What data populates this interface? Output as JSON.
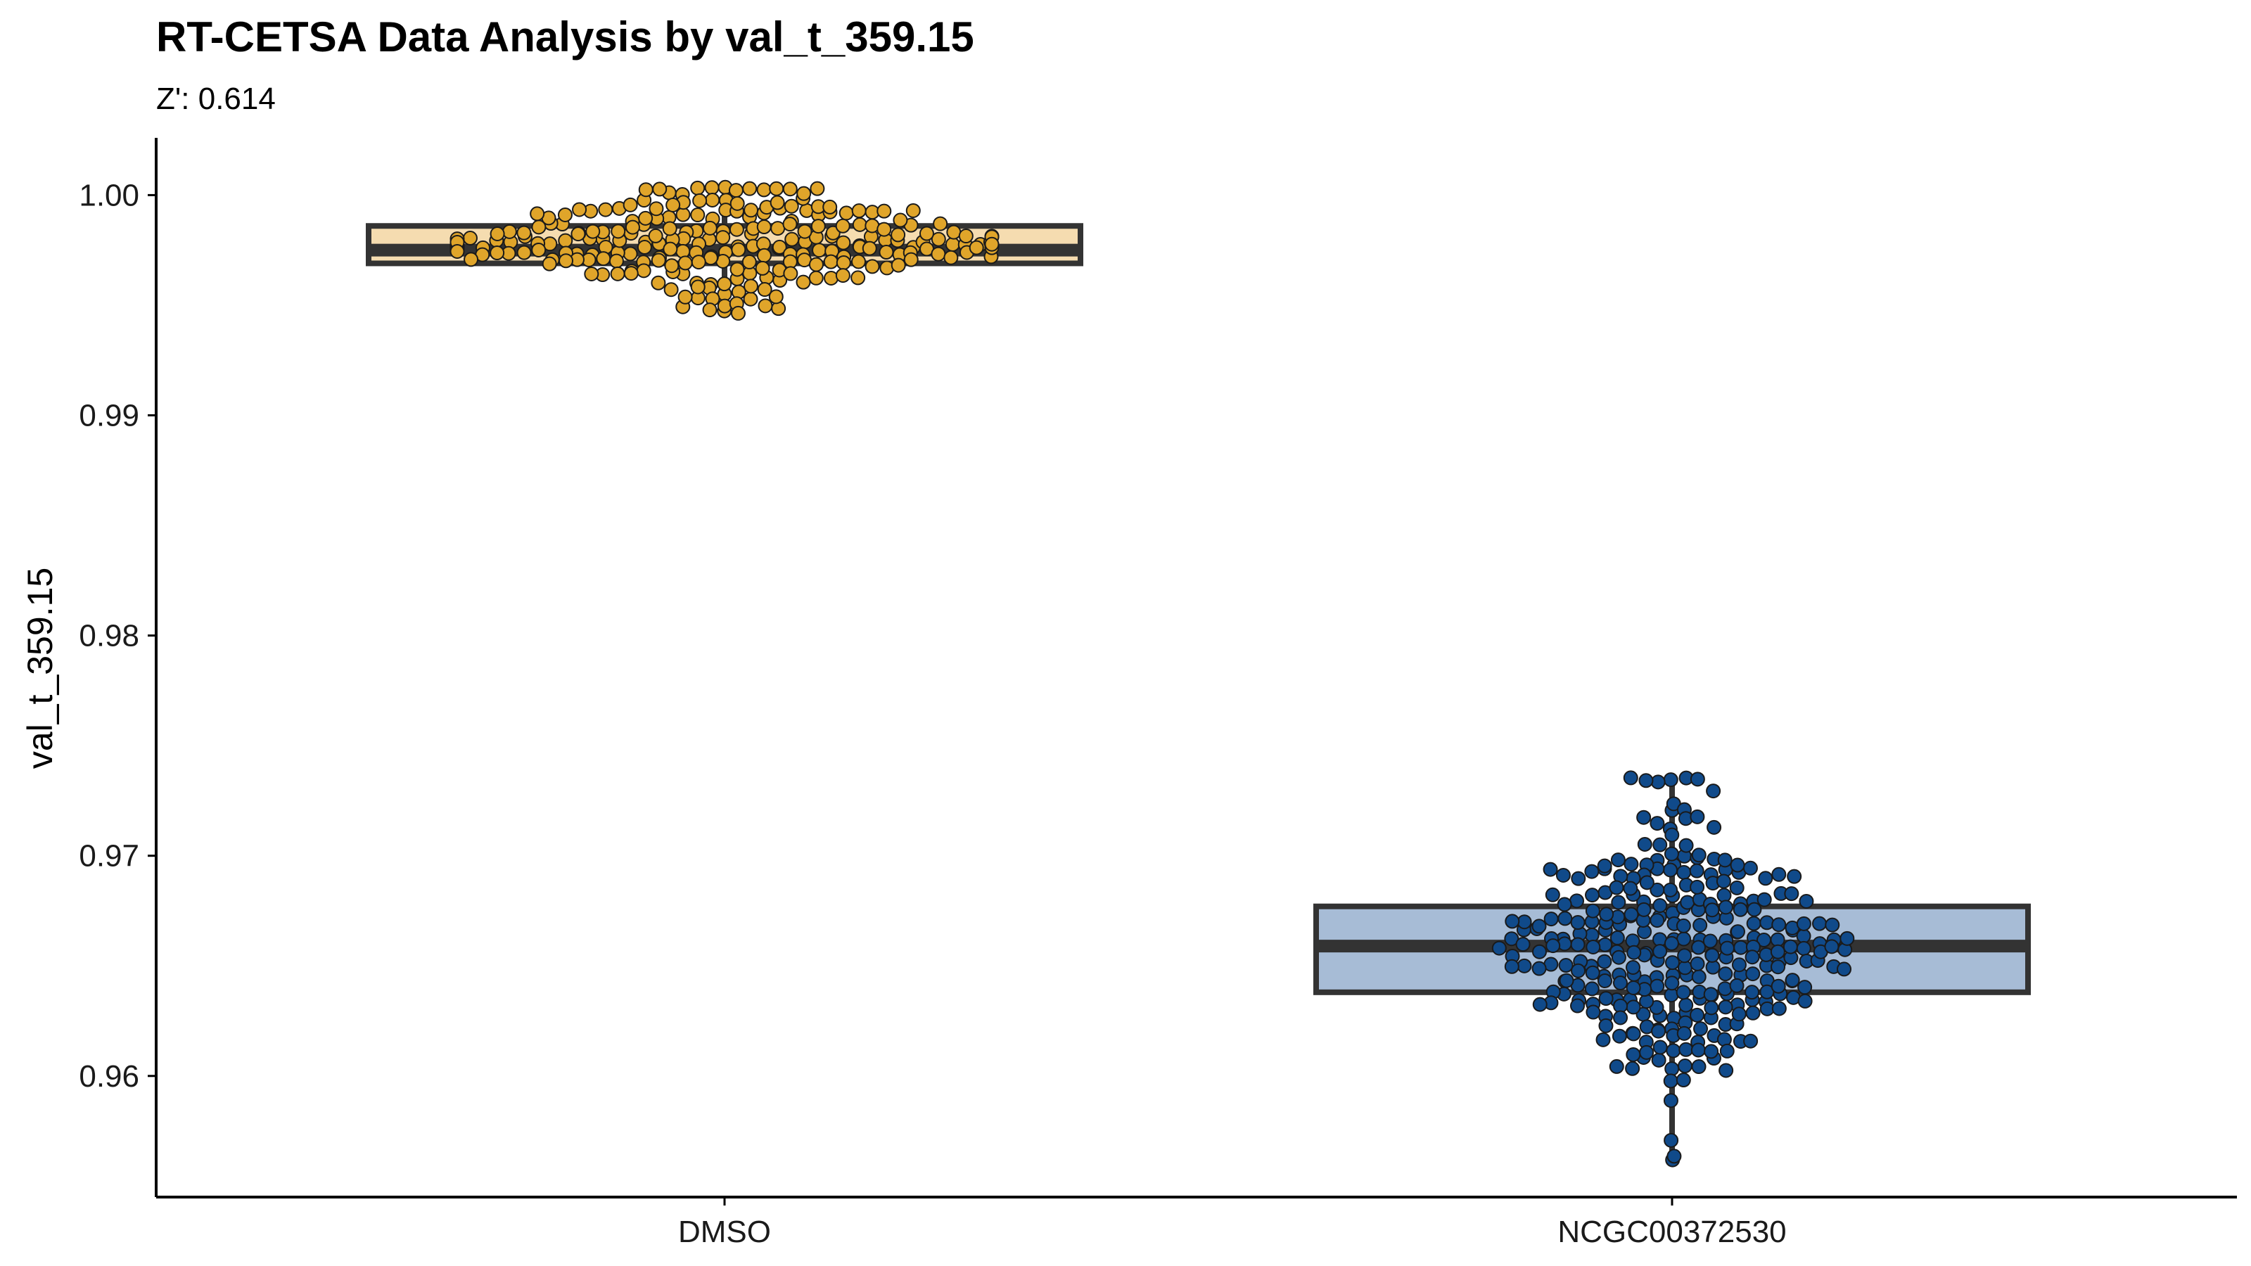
{
  "chart_data": {
    "type": "box",
    "title": "RT-CETSA Data Analysis by val_t_359.15",
    "subtitle": "Z': 0.614",
    "xlabel": "",
    "ylabel": "val_t_359.15",
    "ylim": [
      0.9545,
      1.0026
    ],
    "yticks": [
      0.96,
      0.97,
      0.98,
      0.99,
      1.0
    ],
    "ytick_labels": [
      "0.96",
      "0.97",
      "0.98",
      "0.99",
      "1.00"
    ],
    "categories": [
      "DMSO",
      "NCGC00372530"
    ],
    "grid": false,
    "legend": "none",
    "series": [
      {
        "category": "DMSO",
        "box_fill": "#f5dcb0",
        "point_fill": "#e0a52a",
        "min": 0.9947,
        "q1": 0.9969,
        "median": 0.9975,
        "q3": 0.9986,
        "max": 1.0003,
        "n_points": 256
      },
      {
        "category": "NCGC00372530",
        "box_fill": "#a7bcd6",
        "point_fill": "#104a8a",
        "min": 0.9561,
        "q1": 0.9638,
        "median": 0.9659,
        "q3": 0.9677,
        "max": 0.9735,
        "n_points": 320
      }
    ],
    "colors": {
      "box_line": "#333333",
      "axis": "#000000",
      "point_stroke": "#1a1a1a"
    }
  }
}
